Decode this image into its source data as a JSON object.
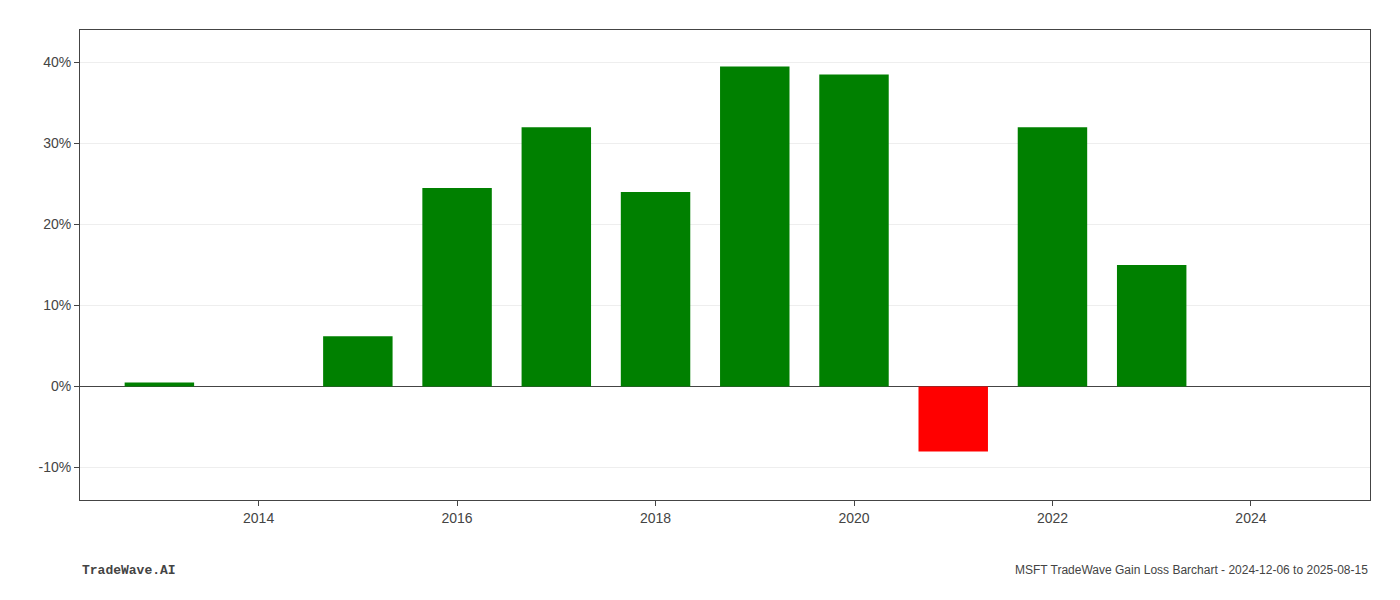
{
  "chart_data": {
    "type": "bar",
    "title": "MSFT TradeWave Gain Loss Barchart - 2024-12-06 to 2025-08-15",
    "annotations": [
      {
        "text": "TradeWave.AI"
      }
    ],
    "x": [
      2013,
      2015,
      2016,
      2017,
      2018,
      2019,
      2020,
      2021,
      2022,
      2023
    ],
    "values": [
      0.5,
      6.2,
      24.5,
      32.0,
      24.0,
      39.5,
      38.5,
      -8.0,
      32.0,
      15.0
    ],
    "colors": [
      "#008000",
      "#008000",
      "#008000",
      "#008000",
      "#008000",
      "#008000",
      "#008000",
      "#ff0000",
      "#008000",
      "#008000"
    ],
    "xlim": [
      2012.2,
      2025.2
    ],
    "xticks": [
      2014,
      2016,
      2018,
      2020,
      2022,
      2024
    ],
    "ylim": [
      -14,
      44
    ],
    "yticks": [
      {
        "value": -10,
        "label": "-10%"
      },
      {
        "value": 0,
        "label": "0%"
      },
      {
        "value": 10,
        "label": "10%"
      },
      {
        "value": 20,
        "label": "20%"
      },
      {
        "value": 30,
        "label": "30%"
      },
      {
        "value": 40,
        "label": "40%"
      }
    ],
    "grid": true
  }
}
